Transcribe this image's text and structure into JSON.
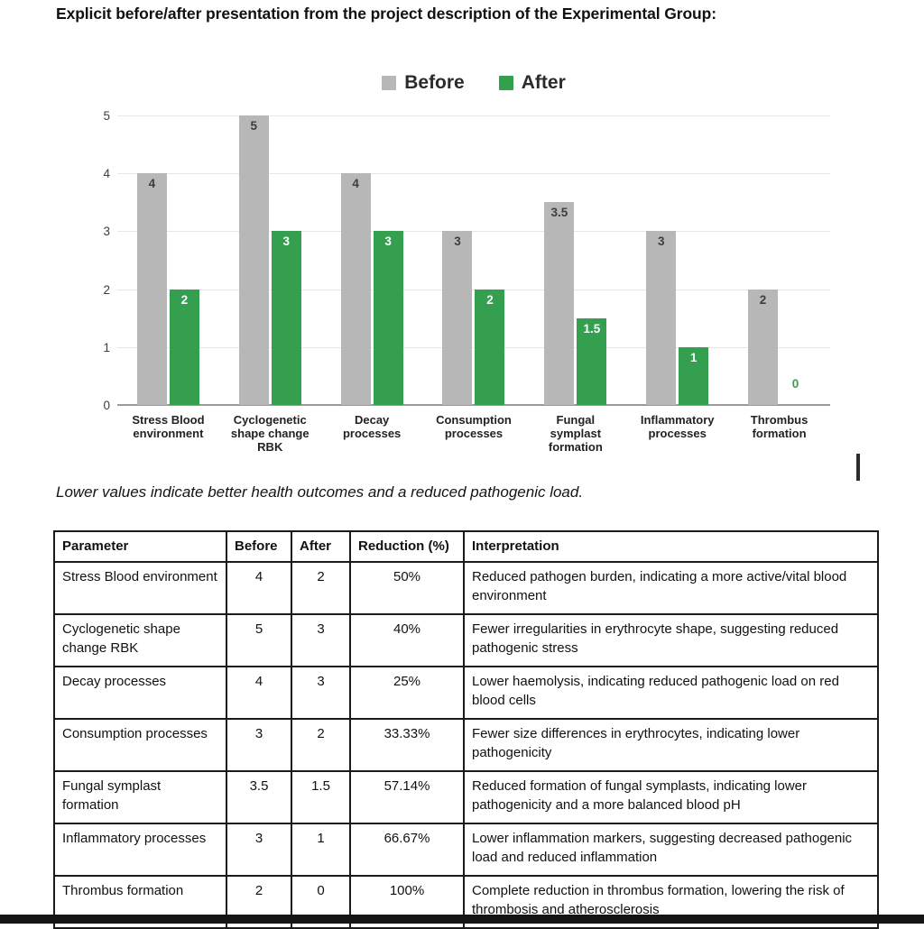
{
  "page": {
    "title": "Explicit before/after presentation from the project description of the Experimental Group:",
    "note": "Lower values indicate better health outcomes and a reduced pathogenic load."
  },
  "chart_data": {
    "type": "bar",
    "title": "",
    "legend": [
      "Before",
      "After"
    ],
    "legend_position": "top",
    "categories": [
      "Stress Blood environment",
      "Cyclogenetic shape change RBK",
      "Decay processes",
      "Consumption processes",
      "Fungal symplast formation",
      "Inflammatory processes",
      "Thrombus formation"
    ],
    "category_label_lines": [
      [
        "Stress Blood",
        "environment"
      ],
      [
        "Cyclogenetic",
        "shape change",
        "RBK"
      ],
      [
        "Decay",
        "processes"
      ],
      [
        "Consumption",
        "processes"
      ],
      [
        "Fungal",
        "symplast",
        "formation"
      ],
      [
        "Inflammatory",
        "processes"
      ],
      [
        "Thrombus",
        "formation"
      ]
    ],
    "series": [
      {
        "name": "Before",
        "color": "#b7b7b7",
        "label_color": "#3d3d3d",
        "values": [
          4,
          5,
          4,
          3,
          3.5,
          3,
          2
        ]
      },
      {
        "name": "After",
        "color": "#34a04f",
        "label_color": "#ffffff",
        "values": [
          2,
          3,
          3,
          2,
          1.5,
          1,
          0
        ]
      }
    ],
    "ylim": [
      0,
      5
    ],
    "yticks": [
      0,
      1,
      2,
      3,
      4,
      5
    ],
    "grid": true,
    "data_labels": true
  },
  "table": {
    "columns": [
      "Parameter",
      "Before",
      "After",
      "Reduction (%)",
      "Interpretation"
    ],
    "rows": [
      {
        "parameter": "Stress Blood environment",
        "before": "4",
        "after": "2",
        "reduction": "50%",
        "interpretation": "Reduced pathogen burden, indicating a more active/vital blood environment"
      },
      {
        "parameter": "Cyclogenetic shape change RBK",
        "before": "5",
        "after": "3",
        "reduction": "40%",
        "interpretation": "Fewer irregularities in erythrocyte shape, suggesting reduced pathogenic stress"
      },
      {
        "parameter": "Decay processes",
        "before": "4",
        "after": "3",
        "reduction": "25%",
        "interpretation": "Lower haemolysis, indicating reduced pathogenic load on red blood cells"
      },
      {
        "parameter": "Consumption processes",
        "before": "3",
        "after": "2",
        "reduction": "33.33%",
        "interpretation": "Fewer size differences in erythrocytes, indicating lower pathogenicity"
      },
      {
        "parameter": "Fungal symplast formation",
        "before": "3.5",
        "after": "1.5",
        "reduction": "57.14%",
        "interpretation": "Reduced formation of fungal symplasts, indicating lower pathogenicity and a more balanced blood pH"
      },
      {
        "parameter": "Inflammatory processes",
        "before": "3",
        "after": "1",
        "reduction": "66.67%",
        "interpretation": "Lower inflammation markers, suggesting decreased pathogenic load and reduced inflammation"
      },
      {
        "parameter": "Thrombus formation",
        "before": "2",
        "after": "0",
        "reduction": "100%",
        "interpretation": "Complete reduction in thrombus formation, lowering the risk of thrombosis and atherosclerosis"
      }
    ]
  },
  "colors": {
    "before": "#b7b7b7",
    "after": "#34a04f",
    "gridline": "#e6e6e6",
    "axis_line": "#9a9a9a",
    "table_border": "#1a1a1a",
    "letterbox": "#141414"
  }
}
